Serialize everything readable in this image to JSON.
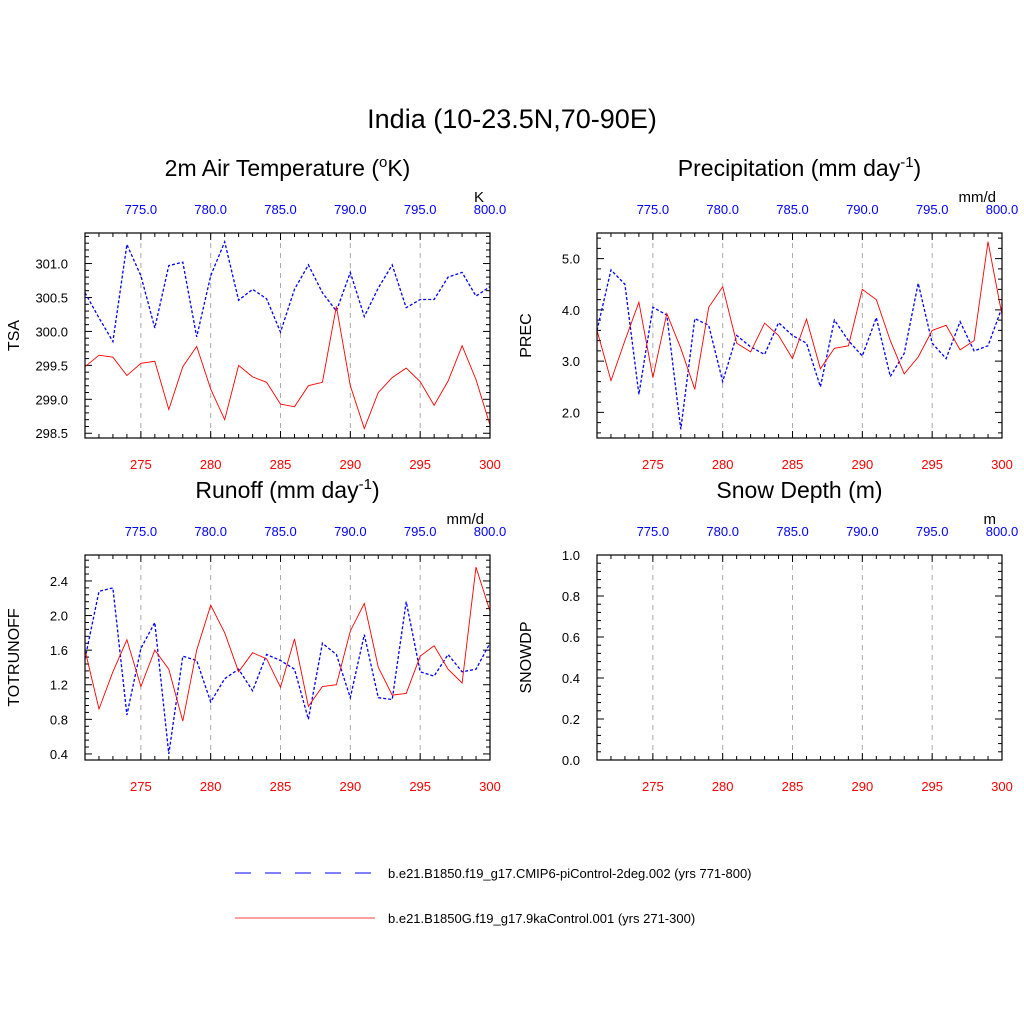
{
  "figure": {
    "title": "India (10-23.5N,70-90E)",
    "legend": [
      {
        "label": "b.e21.B1850.f19_g17.CMIP6-piControl-2deg.002 (yrs 771-800)",
        "color": "#0000ff",
        "dash": "dashed"
      },
      {
        "label": "b.e21.B1850G.f19_g17.9kaControl.001 (yrs 271-300)",
        "color": "#ff0000",
        "dash": "solid"
      }
    ]
  },
  "chart_data": [
    {
      "type": "line",
      "title": "2m Air Temperature (°K)",
      "title_base": "2m Air Temperature (",
      "title_sup": "o",
      "title_tail": "K)",
      "ylabel": "TSA",
      "units": "K",
      "xlim_bottom": [
        271,
        300
      ],
      "xlim_top": [
        771,
        800
      ],
      "xticks_bottom": [
        "275",
        "280",
        "285",
        "290",
        "295",
        "300"
      ],
      "xticks_top": [
        "775.0",
        "780.0",
        "785.0",
        "790.0",
        "795.0",
        "800.0"
      ],
      "ylim": [
        298.43,
        301.45
      ],
      "yticks": [
        "298.5",
        "299.0",
        "299.5",
        "300.0",
        "300.5",
        "301.0"
      ],
      "series": [
        {
          "color": "#0000ff",
          "dash": "dashed",
          "values": [
            300.57,
            300.2,
            299.85,
            301.28,
            300.82,
            300.05,
            300.97,
            301.02,
            299.92,
            300.82,
            301.32,
            300.46,
            300.62,
            300.48,
            299.99,
            300.62,
            300.98,
            300.57,
            300.3,
            300.87,
            300.22,
            300.64,
            300.98,
            300.35,
            300.47,
            300.47,
            300.8,
            300.87,
            300.52,
            300.66
          ]
        },
        {
          "color": "#ff0000",
          "dash": "solid",
          "values": [
            299.48,
            299.65,
            299.62,
            299.35,
            299.53,
            299.56,
            298.85,
            299.48,
            299.78,
            299.15,
            298.7,
            299.5,
            299.33,
            299.25,
            298.93,
            298.89,
            299.2,
            299.25,
            300.37,
            299.2,
            298.57,
            299.1,
            299.32,
            299.46,
            299.26,
            298.91,
            299.27,
            299.79,
            299.29,
            298.62
          ]
        }
      ]
    },
    {
      "type": "line",
      "title": "Precipitation (mm day-1)",
      "title_base": "Precipitation (mm day",
      "title_sup": "-1",
      "title_tail": ")",
      "ylabel": "PREC",
      "units": "mm/d",
      "xlim_bottom": [
        271,
        300
      ],
      "xlim_top": [
        771,
        800
      ],
      "xticks_bottom": [
        "275",
        "280",
        "285",
        "290",
        "295",
        "300"
      ],
      "xticks_top": [
        "775.0",
        "780.0",
        "785.0",
        "790.0",
        "795.0",
        "800.0"
      ],
      "ylim": [
        1.5,
        5.5
      ],
      "yticks": [
        "2.0",
        "3.0",
        "4.0",
        "5.0"
      ],
      "series": [
        {
          "color": "#0000ff",
          "dash": "dashed",
          "values": [
            3.6,
            4.78,
            4.5,
            2.35,
            4.05,
            3.9,
            1.67,
            3.83,
            3.7,
            2.6,
            3.5,
            3.28,
            3.13,
            3.75,
            3.5,
            3.35,
            2.5,
            3.8,
            3.4,
            3.1,
            3.85,
            2.7,
            3.15,
            4.52,
            3.35,
            3.05,
            3.77,
            3.2,
            3.3,
            4.05
          ]
        },
        {
          "color": "#ff0000",
          "dash": "solid",
          "values": [
            3.6,
            2.62,
            3.4,
            4.15,
            2.68,
            3.93,
            3.25,
            2.45,
            4.05,
            4.45,
            3.35,
            3.18,
            3.74,
            3.5,
            3.05,
            3.82,
            2.85,
            3.25,
            3.3,
            4.4,
            4.2,
            3.4,
            2.75,
            3.08,
            3.6,
            3.7,
            3.22,
            3.4,
            5.33,
            3.9
          ]
        }
      ]
    },
    {
      "type": "line",
      "title": "Runoff (mm day-1)",
      "title_base": "Runoff (mm day",
      "title_sup": "-1",
      "title_tail": ")",
      "ylabel": "TOTRUNOFF",
      "units": "mm/d",
      "xlim_bottom": [
        271,
        300
      ],
      "xlim_top": [
        771,
        800
      ],
      "xticks_bottom": [
        "275",
        "280",
        "285",
        "290",
        "295",
        "300"
      ],
      "xticks_top": [
        "775.0",
        "780.0",
        "785.0",
        "790.0",
        "795.0",
        "800.0"
      ],
      "ylim": [
        0.33,
        2.7
      ],
      "yticks": [
        "0.4",
        "0.8",
        "1.2",
        "1.6",
        "2.0",
        "2.4"
      ],
      "series": [
        {
          "color": "#0000ff",
          "dash": "dashed",
          "values": [
            1.5,
            2.28,
            2.32,
            0.85,
            1.62,
            1.92,
            0.4,
            1.53,
            1.48,
            1.0,
            1.27,
            1.38,
            1.13,
            1.55,
            1.48,
            1.38,
            0.8,
            1.68,
            1.55,
            1.05,
            1.78,
            1.05,
            1.03,
            2.16,
            1.35,
            1.3,
            1.55,
            1.35,
            1.38,
            1.68
          ]
        },
        {
          "color": "#ff0000",
          "dash": "solid",
          "values": [
            1.6,
            0.92,
            1.35,
            1.72,
            1.18,
            1.6,
            1.38,
            0.78,
            1.6,
            2.12,
            1.8,
            1.35,
            1.57,
            1.5,
            1.17,
            1.73,
            0.95,
            1.18,
            1.2,
            1.82,
            2.14,
            1.4,
            1.08,
            1.1,
            1.53,
            1.65,
            1.38,
            1.22,
            2.56,
            2.05
          ]
        }
      ]
    },
    {
      "type": "line",
      "title": "Snow Depth (m)",
      "title_base": "Snow Depth (m)",
      "title_sup": "",
      "title_tail": "",
      "ylabel": "SNOWDP",
      "units": "m",
      "xlim_bottom": [
        271,
        300
      ],
      "xlim_top": [
        771,
        800
      ],
      "xticks_bottom": [
        "275",
        "280",
        "285",
        "290",
        "295",
        "300"
      ],
      "xticks_top": [
        "775.0",
        "780.0",
        "785.0",
        "790.0",
        "795.0",
        "800.0"
      ],
      "ylim": [
        0,
        1
      ],
      "yticks": [
        "0.0",
        "0.2",
        "0.4",
        "0.6",
        "0.8",
        "1.0"
      ],
      "series": []
    }
  ]
}
